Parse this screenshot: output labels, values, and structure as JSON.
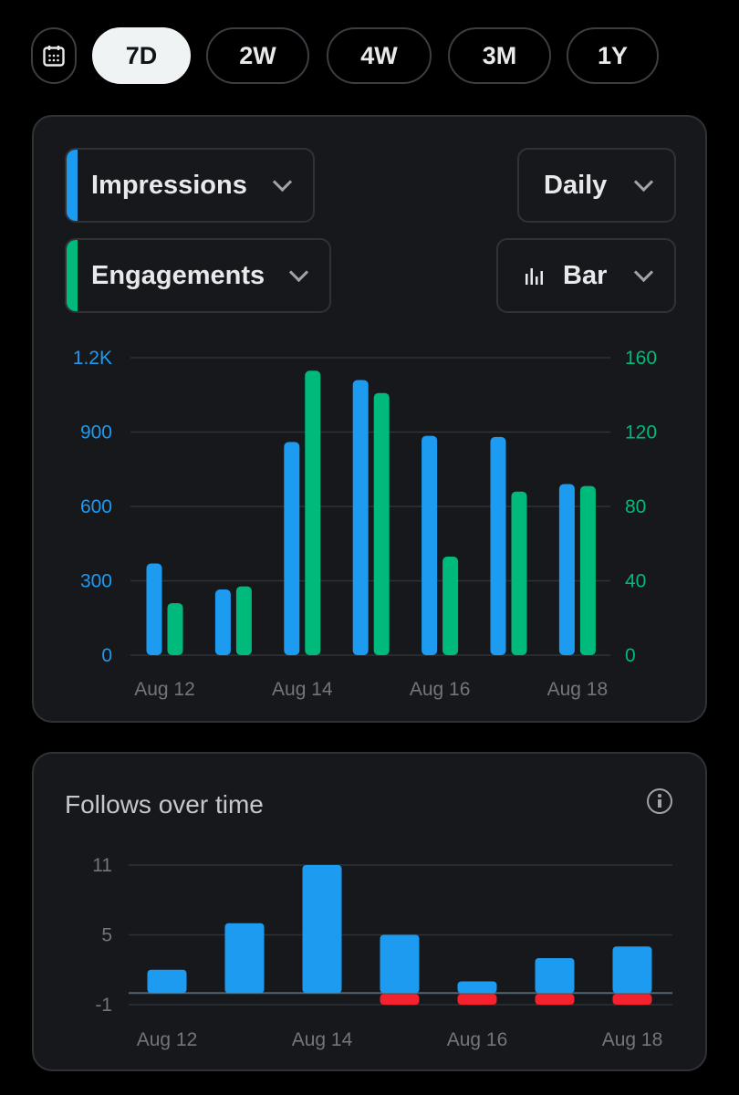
{
  "ranges": {
    "calendar_icon": "calendar-icon",
    "options": [
      "7D",
      "2W",
      "4W",
      "3M",
      "1Y"
    ],
    "selected": "7D"
  },
  "metrics": {
    "primary": {
      "label": "Impressions",
      "color": "#1d9bf0"
    },
    "secondary": {
      "label": "Engagements",
      "color": "#00ba7c"
    },
    "interval": "Daily",
    "chart_type": {
      "label": "Bar",
      "icon": "bar-chart-icon"
    }
  },
  "follows": {
    "title": "Follows over time",
    "info_icon": "info-icon",
    "colors": {
      "gain": "#1d9bf0",
      "loss": "#f4212e"
    }
  },
  "chart_data": [
    {
      "type": "bar",
      "x": [
        "Aug 12",
        "Aug 13",
        "Aug 14",
        "Aug 15",
        "Aug 16",
        "Aug 17",
        "Aug 18"
      ],
      "x_tick_labels": [
        "Aug 12",
        "Aug 14",
        "Aug 16",
        "Aug 18"
      ],
      "series": [
        {
          "name": "Impressions",
          "axis": "left",
          "color": "#1d9bf0",
          "values": [
            370,
            265,
            860,
            1110,
            885,
            880,
            690
          ]
        },
        {
          "name": "Engagements",
          "axis": "right",
          "color": "#00ba7c",
          "values": [
            28,
            37,
            153,
            141,
            53,
            88,
            91
          ]
        }
      ],
      "y_left": {
        "ticks": [
          "0",
          "300",
          "600",
          "900",
          "1.2K"
        ],
        "ylim": [
          0,
          1200
        ]
      },
      "y_right": {
        "ticks": [
          "0",
          "40",
          "80",
          "120",
          "160"
        ],
        "ylim": [
          0,
          160
        ]
      },
      "grid": true
    },
    {
      "type": "bar",
      "title": "Follows over time",
      "x": [
        "Aug 12",
        "Aug 13",
        "Aug 14",
        "Aug 15",
        "Aug 16",
        "Aug 17",
        "Aug 18"
      ],
      "x_tick_labels": [
        "Aug 12",
        "Aug 14",
        "Aug 16",
        "Aug 18"
      ],
      "series": [
        {
          "name": "gained",
          "color": "#1d9bf0",
          "values": [
            2,
            6,
            11,
            5,
            1,
            3,
            4
          ]
        },
        {
          "name": "lost",
          "color": "#f4212e",
          "values": [
            0,
            0,
            0,
            -1,
            -1,
            -1,
            -1
          ]
        }
      ],
      "y_ticks": [
        "-1",
        "5",
        "11"
      ],
      "ylim": [
        -1,
        11
      ],
      "grid": true
    }
  ]
}
